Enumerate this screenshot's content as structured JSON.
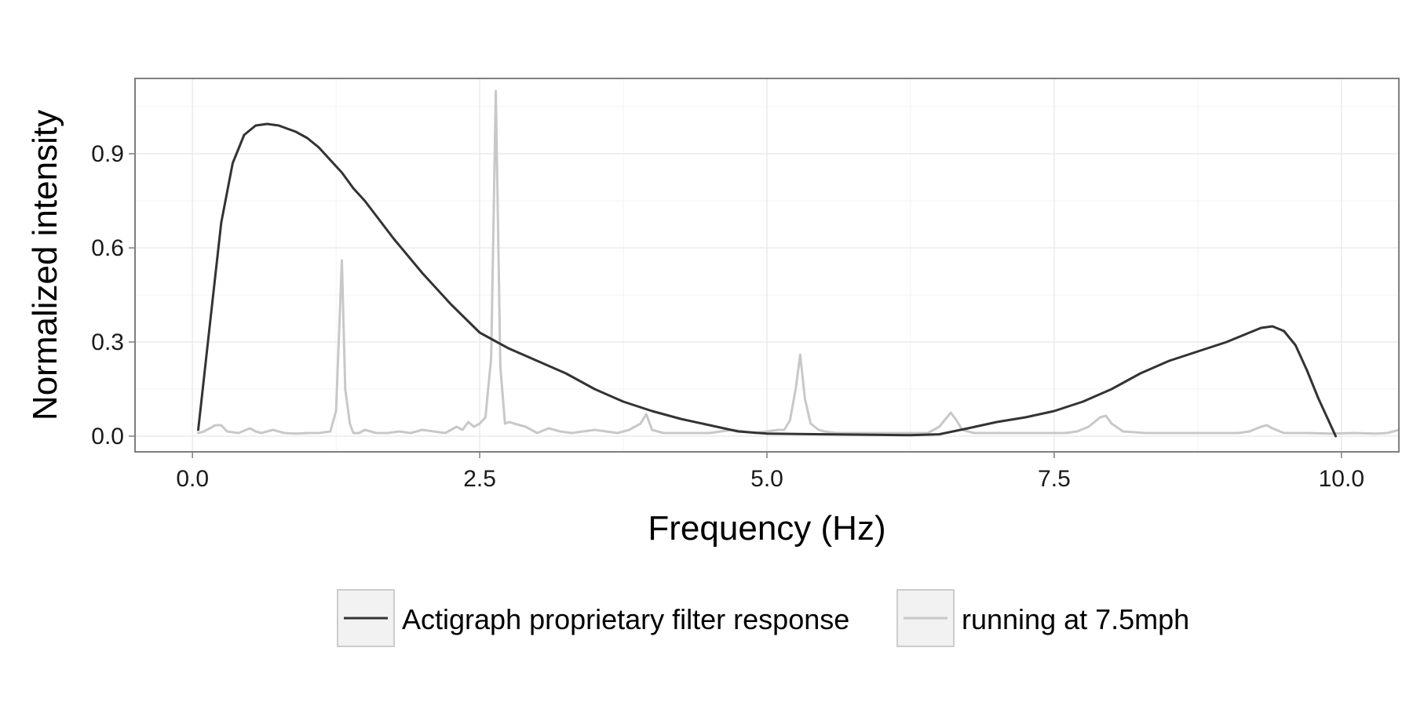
{
  "chart_data": {
    "type": "line",
    "title": "",
    "xlabel": "Frequency (Hz)",
    "ylabel": "Normalized intensity",
    "xlim": [
      -0.5,
      10.5
    ],
    "ylim": [
      -0.05,
      1.14
    ],
    "x_ticks": [
      0.0,
      2.5,
      5.0,
      7.5,
      10.0
    ],
    "x_tick_labels": [
      "0.0",
      "2.5",
      "5.0",
      "7.5",
      "10.0"
    ],
    "y_ticks": [
      0.0,
      0.3,
      0.6,
      0.9
    ],
    "y_tick_labels": [
      "0.0",
      "0.3",
      "0.6",
      "0.9"
    ],
    "grid": true,
    "legend_position": "bottom",
    "series": [
      {
        "name": "Actigraph proprietary filter response",
        "color": "#333333",
        "x": [
          0.05,
          0.15,
          0.25,
          0.35,
          0.45,
          0.55,
          0.65,
          0.75,
          0.9,
          1.0,
          1.1,
          1.2,
          1.3,
          1.4,
          1.5,
          1.75,
          2.0,
          2.25,
          2.5,
          2.75,
          3.0,
          3.25,
          3.5,
          3.75,
          4.0,
          4.25,
          4.5,
          4.75,
          5.0,
          5.5,
          6.0,
          6.25,
          6.5,
          6.75,
          7.0,
          7.25,
          7.5,
          7.75,
          8.0,
          8.25,
          8.5,
          8.75,
          9.0,
          9.2,
          9.3,
          9.4,
          9.5,
          9.6,
          9.7,
          9.8,
          9.9,
          9.95
        ],
        "y": [
          0.02,
          0.35,
          0.68,
          0.87,
          0.96,
          0.99,
          0.995,
          0.99,
          0.97,
          0.95,
          0.92,
          0.88,
          0.84,
          0.79,
          0.75,
          0.63,
          0.52,
          0.42,
          0.33,
          0.28,
          0.24,
          0.2,
          0.15,
          0.11,
          0.08,
          0.055,
          0.035,
          0.015,
          0.008,
          0.006,
          0.004,
          0.003,
          0.006,
          0.025,
          0.045,
          0.06,
          0.08,
          0.11,
          0.15,
          0.2,
          0.24,
          0.27,
          0.3,
          0.33,
          0.345,
          0.35,
          0.335,
          0.29,
          0.21,
          0.12,
          0.04,
          0.0
        ]
      },
      {
        "name": "running at 7.5mph",
        "color": "#c8c8c8",
        "x": [
          0.05,
          0.1,
          0.2,
          0.25,
          0.3,
          0.4,
          0.5,
          0.55,
          0.6,
          0.7,
          0.8,
          0.9,
          1.0,
          1.1,
          1.2,
          1.25,
          1.3,
          1.33,
          1.37,
          1.4,
          1.45,
          1.5,
          1.6,
          1.7,
          1.8,
          1.9,
          2.0,
          2.1,
          2.2,
          2.3,
          2.35,
          2.4,
          2.45,
          2.5,
          2.55,
          2.6,
          2.64,
          2.68,
          2.72,
          2.76,
          2.8,
          2.9,
          3.0,
          3.1,
          3.2,
          3.3,
          3.4,
          3.5,
          3.6,
          3.7,
          3.8,
          3.9,
          3.95,
          4.0,
          4.1,
          4.2,
          4.3,
          4.5,
          4.7,
          4.9,
          5.0,
          5.1,
          5.15,
          5.2,
          5.25,
          5.29,
          5.33,
          5.38,
          5.45,
          5.5,
          5.6,
          5.7,
          5.8,
          6.0,
          6.2,
          6.4,
          6.5,
          6.6,
          6.65,
          6.7,
          6.8,
          7.0,
          7.2,
          7.4,
          7.6,
          7.7,
          7.8,
          7.9,
          7.95,
          8.0,
          8.1,
          8.3,
          8.5,
          8.7,
          8.9,
          9.1,
          9.2,
          9.3,
          9.35,
          9.4,
          9.5,
          9.7,
          9.9,
          10.1,
          10.3,
          10.4,
          10.5
        ],
        "y": [
          0.01,
          0.015,
          0.035,
          0.035,
          0.015,
          0.01,
          0.025,
          0.015,
          0.01,
          0.02,
          0.01,
          0.008,
          0.01,
          0.01,
          0.015,
          0.08,
          0.56,
          0.15,
          0.04,
          0.01,
          0.01,
          0.02,
          0.01,
          0.01,
          0.015,
          0.01,
          0.02,
          0.015,
          0.01,
          0.03,
          0.02,
          0.045,
          0.03,
          0.04,
          0.06,
          0.25,
          1.1,
          0.22,
          0.04,
          0.045,
          0.04,
          0.03,
          0.01,
          0.025,
          0.015,
          0.01,
          0.015,
          0.02,
          0.015,
          0.01,
          0.02,
          0.04,
          0.07,
          0.02,
          0.01,
          0.01,
          0.01,
          0.01,
          0.02,
          0.01,
          0.015,
          0.02,
          0.02,
          0.05,
          0.15,
          0.26,
          0.12,
          0.04,
          0.02,
          0.015,
          0.01,
          0.01,
          0.01,
          0.01,
          0.01,
          0.01,
          0.03,
          0.075,
          0.05,
          0.02,
          0.01,
          0.01,
          0.01,
          0.01,
          0.01,
          0.015,
          0.03,
          0.06,
          0.065,
          0.04,
          0.015,
          0.01,
          0.01,
          0.01,
          0.01,
          0.01,
          0.015,
          0.03,
          0.035,
          0.025,
          0.01,
          0.01,
          0.008,
          0.01,
          0.008,
          0.01,
          0.02
        ]
      }
    ]
  }
}
